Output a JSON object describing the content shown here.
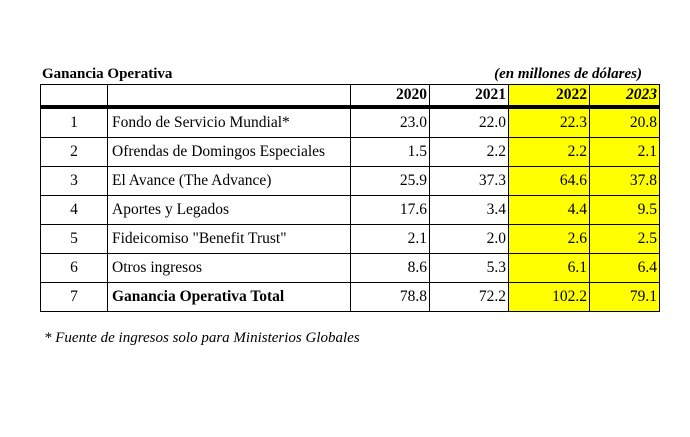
{
  "title": "Ganancia Operativa",
  "units": "(en millones de dólares)",
  "years": [
    "2020",
    "2021",
    "2022",
    "2023"
  ],
  "rows": [
    {
      "n": "1",
      "label": "Fondo de Servicio Mundial*",
      "v": [
        "23.0",
        "22.0",
        "22.3",
        "20.8"
      ]
    },
    {
      "n": "2",
      "label": "Ofrendas de Domingos Especiales",
      "v": [
        "1.5",
        "2.2",
        "2.2",
        "2.1"
      ]
    },
    {
      "n": "3",
      "label": "El Avance (The Advance)",
      "v": [
        "25.9",
        "37.3",
        "64.6",
        "37.8"
      ]
    },
    {
      "n": "4",
      "label": "Aportes y Legados",
      "v": [
        "17.6",
        "3.4",
        "4.4",
        "9.5"
      ]
    },
    {
      "n": "5",
      "label": "Fideicomiso \"Benefit Trust\"",
      "v": [
        "2.1",
        "2.0",
        "2.6",
        "2.5"
      ]
    },
    {
      "n": "6",
      "label": "Otros ingresos",
      "v": [
        "8.6",
        "5.3",
        "6.1",
        "6.4"
      ]
    },
    {
      "n": "7",
      "label": "Ganancia Operativa Total",
      "v": [
        "78.8",
        "72.2",
        "102.2",
        "79.1"
      ]
    }
  ],
  "footnote": "* Fuente de ingresos solo para Ministerios Globales",
  "colors": {
    "highlight": "#ffff00"
  }
}
